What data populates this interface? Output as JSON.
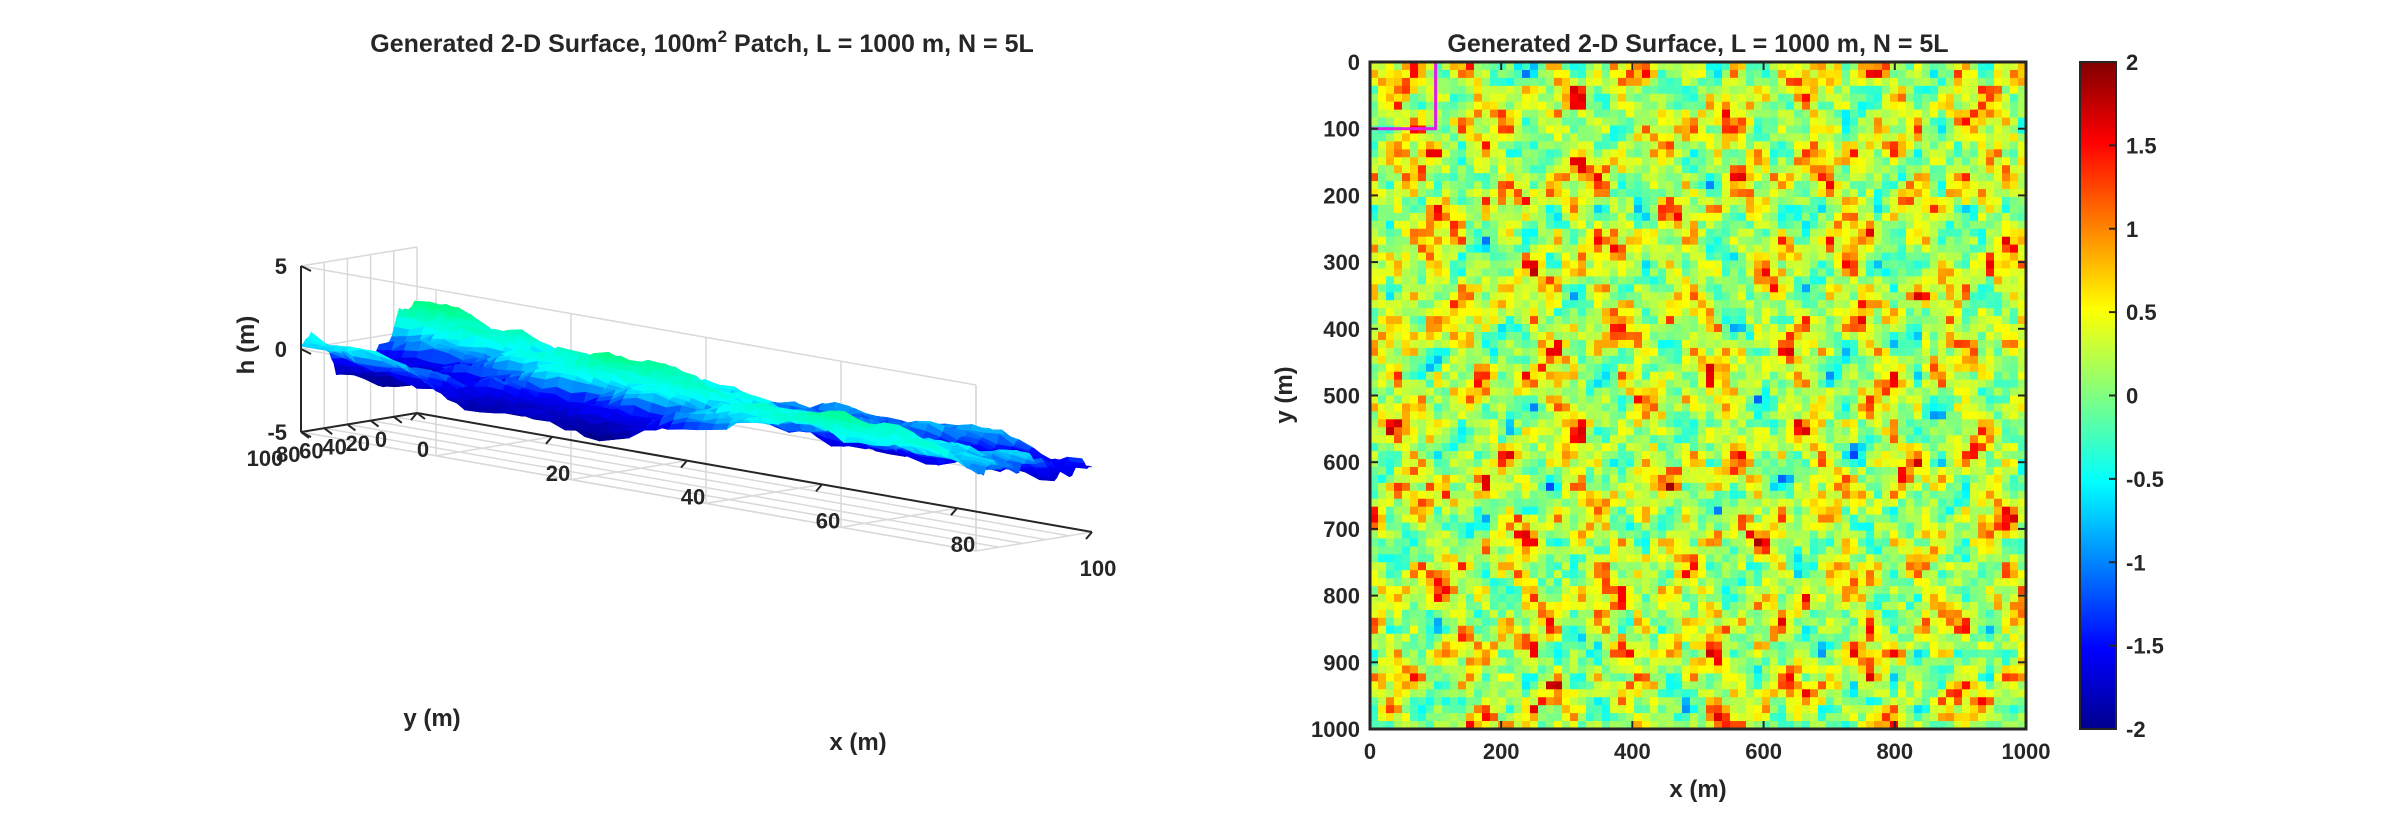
{
  "chart_data": [
    {
      "type": "surface",
      "title_prefix": "Generated 2-D Surface, 100m",
      "title_sup": "2",
      "title_suffix": " Patch, L = 1000 m, N = 5L",
      "xlabel": "x (m)",
      "ylabel": "y (m)",
      "zlabel": "h (m)",
      "xlim": [
        0,
        100
      ],
      "ylim": [
        0,
        100
      ],
      "zlim": [
        -5,
        5
      ],
      "xticks": [
        "0",
        "20",
        "40",
        "60",
        "80",
        "100"
      ],
      "yticks": [
        "0",
        "20",
        "40",
        "60",
        "80",
        "100"
      ],
      "zticks": [
        "-5",
        "0",
        "5"
      ],
      "grid": true,
      "colormap": [
        "#00008f",
        "#0000ff",
        "#00ffff",
        "#00ff80",
        "#ffff00",
        "#ff0000",
        "#800000"
      ]
    },
    {
      "type": "heatmap",
      "title": "Generated 2-D Surface, L = 1000 m, N = 5L",
      "xlabel": "x (m)",
      "ylabel": "y (m)",
      "xlim": [
        0,
        1000
      ],
      "ylim": [
        0,
        1000
      ],
      "xticks": [
        "0",
        "200",
        "400",
        "600",
        "800",
        "1000"
      ],
      "yticks": [
        "0",
        "100",
        "200",
        "300",
        "400",
        "500",
        "600",
        "700",
        "800",
        "900",
        "1000"
      ],
      "colorbar": {
        "range": [
          -2,
          2
        ],
        "ticks": [
          "2",
          "1.5",
          "1",
          "0.5",
          "0",
          "-0.5",
          "-1",
          "-1.5",
          "-2"
        ]
      },
      "colormap": [
        "#00008f",
        "#0000ff",
        "#00ffff",
        "#80ff80",
        "#ffff00",
        "#ff0000",
        "#800000"
      ],
      "highlight_box": {
        "x": [
          0,
          100
        ],
        "y": [
          0,
          100
        ],
        "color": "#e020e0"
      }
    }
  ]
}
